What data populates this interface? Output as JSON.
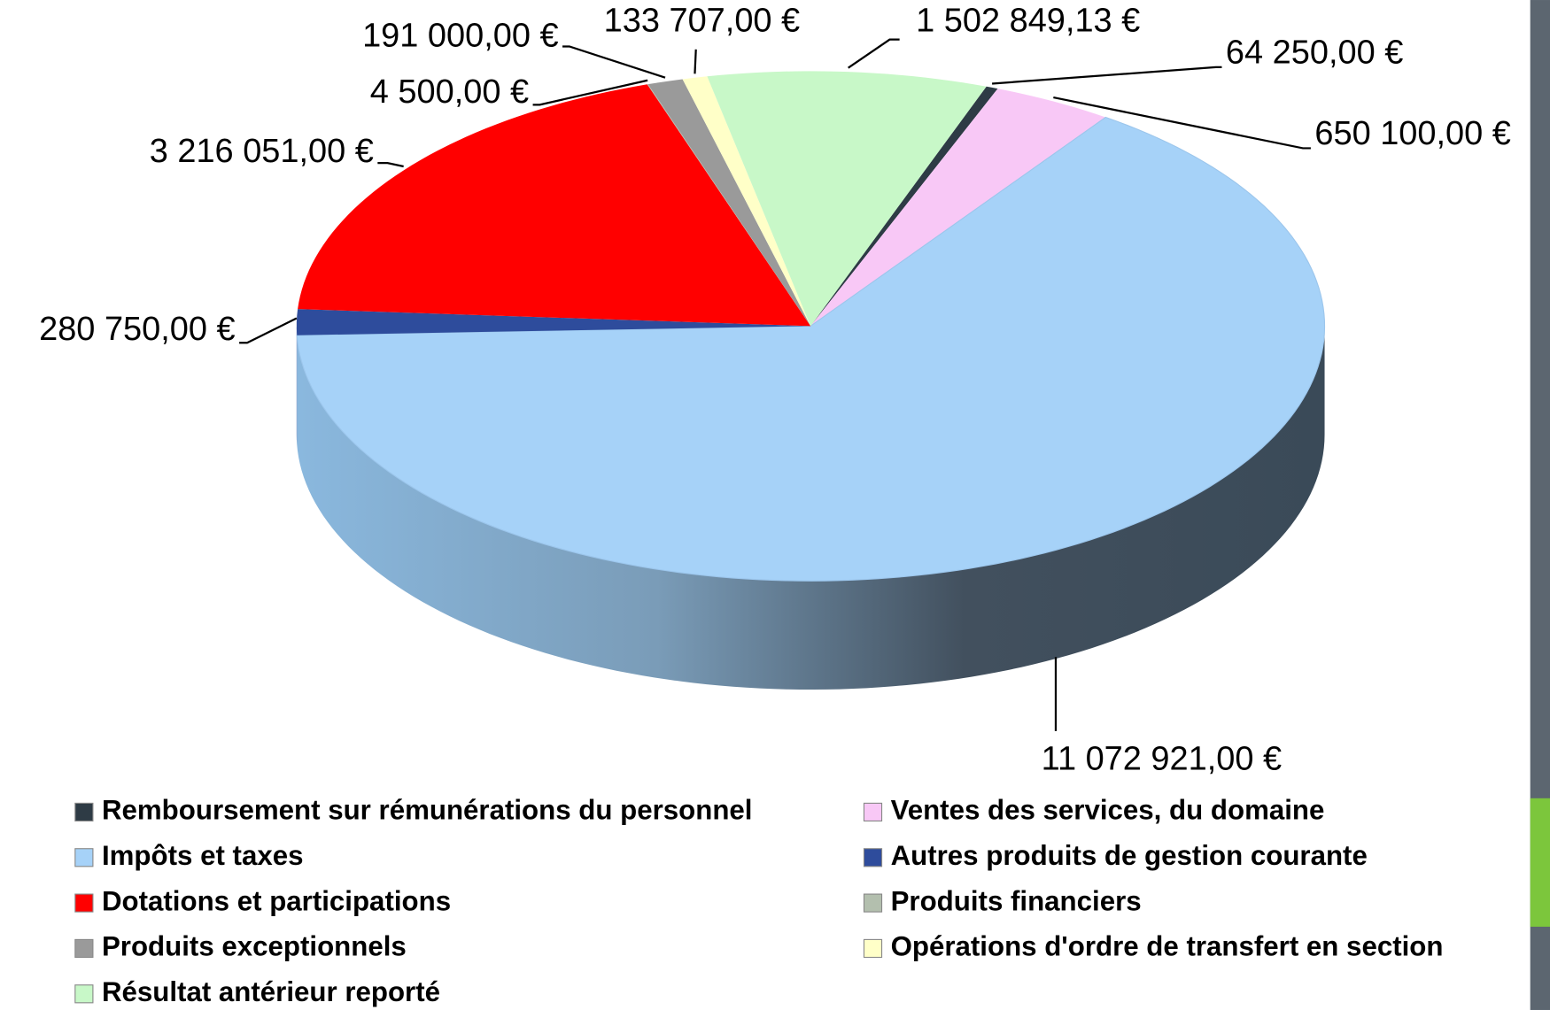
{
  "chart_data": {
    "type": "pie3d",
    "categories": [
      "Remboursement sur rémunérations du personnel",
      "Ventes des services, du domaine",
      "Impôts et taxes",
      "Autres produits de gestion courante",
      "Dotations et participations",
      "Produits financiers",
      "Produits exceptionnels",
      "Opérations d'ordre de transfert en section",
      "Résultat antérieur reporté"
    ],
    "values": [
      64250,
      650100,
      11072921,
      280750,
      3216051,
      4500,
      191000,
      133707,
      1502849.13
    ],
    "value_labels": [
      "64 250,00 €",
      "650 100,00 €",
      "11 072 921,00 €",
      "280 750,00 €",
      "3 216 051,00 €",
      "4 500,00 €",
      "191 000,00 €",
      "133 707,00 €",
      "1 502 849,13 €"
    ],
    "colors": [
      "#2e3b45",
      "#f8c8f6",
      "#a6d2f8",
      "#2e4c9c",
      "#ff0000",
      "#b3bfae",
      "#9a9a9a",
      "#ffffc8",
      "#c8f8c8"
    ],
    "legend": "bottom"
  }
}
